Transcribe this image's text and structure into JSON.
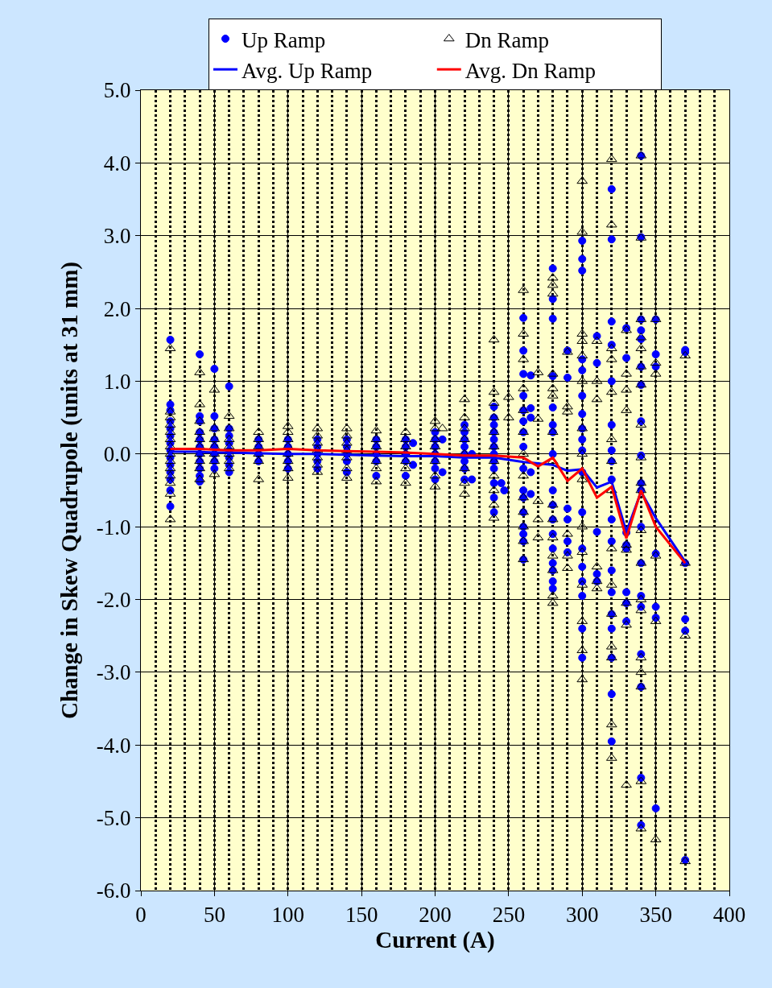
{
  "chart_data": {
    "type": "scatter",
    "xlabel": "Current (A)",
    "ylabel": "Change in Skew Quadrupole (units at 31 mm)",
    "xlim": [
      0,
      400
    ],
    "xticks": [
      0,
      50,
      100,
      150,
      200,
      250,
      300,
      350,
      400
    ],
    "ylim": [
      -6,
      5
    ],
    "yticks": [
      {
        "value": -6,
        "label": "-6.0"
      },
      {
        "value": -5,
        "label": "-5.0"
      },
      {
        "value": -4,
        "label": "-4.0"
      },
      {
        "value": -3,
        "label": "-3.0"
      },
      {
        "value": -2,
        "label": "-2.0"
      },
      {
        "value": -1,
        "label": "-1.0"
      },
      {
        "value": 0,
        "label": "0.0"
      },
      {
        "value": 1,
        "label": "1.0"
      },
      {
        "value": 2,
        "label": "2.0"
      },
      {
        "value": 3,
        "label": "3.0"
      },
      {
        "value": 4,
        "label": "4.0"
      },
      {
        "value": 5,
        "label": "5.0"
      }
    ],
    "grid": true,
    "legend": "top",
    "series": [
      {
        "name": "Up Ramp",
        "marker": "circle",
        "color": "#0000ff",
        "x": [
          20,
          20,
          20,
          20,
          20,
          20,
          20,
          20,
          20,
          20,
          20,
          20,
          20,
          20,
          40,
          40,
          40,
          40,
          40,
          40,
          40,
          40,
          40,
          40,
          40,
          50,
          50,
          50,
          50,
          50,
          50,
          50,
          50,
          60,
          60,
          60,
          60,
          60,
          60,
          60,
          60,
          80,
          80,
          80,
          80,
          100,
          100,
          100,
          100,
          100,
          120,
          120,
          120,
          120,
          120,
          140,
          140,
          140,
          140,
          140,
          160,
          160,
          160,
          160,
          160,
          180,
          180,
          180,
          180,
          180,
          185,
          185,
          200,
          200,
          200,
          200,
          200,
          200,
          200,
          205,
          205,
          220,
          220,
          220,
          220,
          220,
          220,
          220,
          220,
          225,
          225,
          240,
          240,
          240,
          240,
          240,
          240,
          240,
          240,
          240,
          240,
          240,
          240,
          245,
          247,
          260,
          260,
          260,
          260,
          260,
          260,
          260,
          260,
          260,
          260,
          260,
          260,
          260,
          260,
          260,
          260,
          265,
          265,
          265,
          265,
          265,
          280,
          280,
          280,
          280,
          280,
          280,
          280,
          280,
          280,
          280,
          280,
          280,
          280,
          280,
          280,
          280,
          280,
          290,
          290,
          290,
          290,
          290,
          290,
          300,
          300,
          300,
          300,
          300,
          300,
          300,
          300,
          300,
          300,
          300,
          300,
          300,
          300,
          300,
          300,
          300,
          300,
          310,
          310,
          310,
          310,
          310,
          320,
          320,
          320,
          320,
          320,
          320,
          320,
          320,
          320,
          320,
          320,
          320,
          320,
          320,
          320,
          320,
          320,
          320,
          330,
          330,
          330,
          330,
          330,
          330,
          330,
          330,
          340,
          340,
          340,
          340,
          340,
          340,
          340,
          340,
          340,
          340,
          340,
          340,
          340,
          340,
          340,
          340,
          340,
          340,
          340,
          350,
          350,
          350,
          350,
          350,
          350,
          350,
          370,
          370,
          370,
          370,
          370,
          370
        ],
        "values": [
          1.57,
          0.68,
          0.6,
          0.45,
          0.35,
          0.25,
          0.15,
          0.05,
          -0.05,
          -0.15,
          -0.25,
          -0.35,
          -0.5,
          -0.72,
          1.37,
          0.52,
          0.45,
          0.3,
          0.2,
          0.1,
          0.0,
          -0.1,
          -0.2,
          -0.3,
          -0.38,
          1.17,
          0.52,
          0.35,
          0.2,
          0.1,
          0.0,
          -0.1,
          -0.2,
          0.93,
          0.35,
          0.25,
          0.15,
          0.05,
          -0.05,
          -0.15,
          -0.25,
          0.2,
          0.1,
          0.0,
          -0.1,
          0.2,
          0.1,
          0.0,
          -0.1,
          -0.2,
          0.2,
          0.1,
          0.0,
          -0.1,
          -0.2,
          0.2,
          0.1,
          0.0,
          -0.1,
          -0.25,
          0.2,
          0.1,
          0.0,
          -0.1,
          -0.3,
          0.2,
          0.1,
          0.0,
          -0.1,
          -0.3,
          0.15,
          -0.15,
          0.3,
          0.2,
          0.1,
          0.0,
          -0.1,
          -0.2,
          -0.35,
          0.2,
          -0.25,
          0.4,
          0.3,
          0.2,
          0.1,
          0.0,
          -0.1,
          -0.2,
          -0.35,
          0.0,
          -0.35,
          0.65,
          0.5,
          0.4,
          0.3,
          0.2,
          0.1,
          0.0,
          -0.1,
          -0.2,
          -0.4,
          -0.6,
          -0.8,
          -0.4,
          -0.5,
          1.87,
          1.42,
          1.1,
          0.8,
          0.6,
          0.45,
          0.3,
          0.1,
          -0.2,
          -0.5,
          -0.6,
          -0.8,
          -1.0,
          -1.1,
          -1.2,
          -1.45,
          1.08,
          0.63,
          0.5,
          -0.25,
          -0.55,
          2.55,
          2.13,
          1.86,
          1.07,
          0.64,
          0.4,
          0.3,
          0.0,
          -0.5,
          -0.7,
          -0.9,
          -1.1,
          -1.3,
          -1.5,
          -1.6,
          -1.75,
          -1.85,
          1.42,
          1.05,
          -0.75,
          -0.9,
          -1.2,
          -1.35,
          2.93,
          2.68,
          2.52,
          1.3,
          1.15,
          0.8,
          0.55,
          0.35,
          0.2,
          0.05,
          -0.25,
          -0.8,
          -1.3,
          -1.55,
          -1.75,
          -1.95,
          -2.4,
          -2.8,
          1.62,
          1.25,
          -1.07,
          -1.65,
          -1.75,
          3.64,
          2.95,
          1.82,
          1.5,
          1.0,
          0.4,
          0.05,
          -0.1,
          -0.35,
          -0.9,
          -1.2,
          -1.6,
          -1.9,
          -2.2,
          -2.4,
          -2.8,
          -3.3,
          -3.95,
          1.73,
          1.32,
          -1.08,
          -1.25,
          -1.3,
          -1.9,
          -2.05,
          -2.3,
          4.1,
          2.98,
          1.85,
          1.7,
          1.58,
          1.2,
          0.95,
          0.45,
          -0.02,
          -0.4,
          -0.5,
          -1.0,
          -1.5,
          -1.95,
          -2.1,
          -2.75,
          -3.2,
          -4.45,
          -5.1,
          1.85,
          1.37,
          1.2,
          -1.37,
          -2.1,
          -2.25,
          -4.87,
          1.43,
          1.4,
          -1.5,
          -2.27,
          -2.43,
          -5.58
        ]
      },
      {
        "name": "Dn Ramp",
        "marker": "triangle",
        "color": "#000000",
        "x": [
          20,
          20,
          20,
          20,
          20,
          20,
          20,
          20,
          20,
          20,
          20,
          20,
          20,
          20,
          40,
          40,
          40,
          40,
          40,
          40,
          40,
          40,
          40,
          40,
          50,
          50,
          50,
          50,
          50,
          50,
          50,
          60,
          60,
          60,
          60,
          60,
          60,
          60,
          80,
          80,
          80,
          80,
          80,
          80,
          100,
          100,
          100,
          100,
          100,
          100,
          100,
          100,
          120,
          120,
          120,
          120,
          120,
          120,
          120,
          140,
          140,
          140,
          140,
          140,
          140,
          140,
          160,
          160,
          160,
          160,
          160,
          160,
          160,
          180,
          180,
          180,
          180,
          180,
          180,
          180,
          200,
          200,
          200,
          200,
          200,
          200,
          200,
          200,
          205,
          220,
          220,
          220,
          220,
          220,
          220,
          220,
          220,
          240,
          240,
          240,
          240,
          240,
          240,
          240,
          240,
          240,
          240,
          240,
          250,
          250,
          260,
          260,
          260,
          260,
          260,
          260,
          260,
          260,
          260,
          260,
          260,
          260,
          260,
          270,
          270,
          270,
          270,
          270,
          280,
          280,
          280,
          280,
          280,
          280,
          280,
          280,
          280,
          280,
          280,
          280,
          280,
          280,
          280,
          290,
          290,
          290,
          290,
          290,
          290,
          300,
          300,
          300,
          300,
          300,
          300,
          300,
          300,
          300,
          300,
          300,
          300,
          300,
          300,
          300,
          310,
          310,
          310,
          310,
          310,
          310,
          320,
          320,
          320,
          320,
          320,
          320,
          320,
          320,
          320,
          320,
          320,
          320,
          320,
          320,
          320,
          330,
          330,
          330,
          330,
          330,
          330,
          330,
          330,
          330,
          340,
          340,
          340,
          340,
          340,
          340,
          340,
          340,
          340,
          340,
          340,
          340,
          340,
          340,
          340,
          340,
          340,
          340,
          340,
          340,
          350,
          350,
          350,
          350,
          350,
          350,
          370,
          370,
          370,
          370
        ],
        "values": [
          1.45,
          0.58,
          0.5,
          0.4,
          0.3,
          0.2,
          0.1,
          0.0,
          -0.1,
          -0.2,
          -0.3,
          -0.4,
          -0.55,
          -0.9,
          1.12,
          0.68,
          0.45,
          0.3,
          0.2,
          0.1,
          0.0,
          -0.1,
          -0.2,
          -0.35,
          0.88,
          0.35,
          0.2,
          0.1,
          0.0,
          -0.1,
          -0.28,
          0.52,
          0.35,
          0.2,
          0.1,
          0.0,
          -0.1,
          -0.2,
          0.3,
          0.2,
          0.1,
          0.0,
          -0.1,
          -0.35,
          0.38,
          0.3,
          0.2,
          0.1,
          0.0,
          -0.1,
          -0.2,
          -0.33,
          0.35,
          0.25,
          0.15,
          0.05,
          -0.05,
          -0.15,
          -0.25,
          0.35,
          0.25,
          0.15,
          0.05,
          -0.05,
          -0.2,
          -0.33,
          0.32,
          0.2,
          0.1,
          0.0,
          -0.1,
          -0.2,
          -0.38,
          0.3,
          0.2,
          0.1,
          0.0,
          -0.1,
          -0.2,
          -0.4,
          0.45,
          0.35,
          0.2,
          0.1,
          0.0,
          -0.1,
          -0.3,
          -0.45,
          0.35,
          0.75,
          0.5,
          0.35,
          0.2,
          0.0,
          -0.2,
          -0.4,
          -0.55,
          1.57,
          0.85,
          0.7,
          0.5,
          0.3,
          0.1,
          -0.1,
          -0.3,
          -0.5,
          -0.7,
          -0.88,
          0.78,
          0.5,
          2.25,
          1.65,
          1.3,
          0.9,
          0.6,
          0.3,
          0.0,
          -0.3,
          -0.6,
          -0.8,
          -1.0,
          -1.2,
          -1.45,
          1.12,
          0.48,
          -0.65,
          -0.9,
          -1.15,
          2.42,
          2.32,
          2.2,
          1.1,
          0.9,
          0.8,
          0.3,
          -0.1,
          -0.7,
          -0.9,
          -1.15,
          -1.4,
          -1.6,
          -1.95,
          -2.05,
          1.4,
          0.65,
          0.58,
          -1.1,
          -1.4,
          -1.57,
          3.75,
          3.05,
          1.65,
          1.55,
          1.35,
          1.0,
          0.35,
          0.0,
          -0.35,
          -1.0,
          -1.35,
          -1.8,
          -2.3,
          -2.7,
          -3.1,
          1.55,
          1.0,
          0.75,
          -1.55,
          -1.75,
          -1.85,
          4.05,
          3.15,
          1.45,
          1.3,
          0.85,
          0.2,
          -0.1,
          -0.5,
          -1.3,
          -1.8,
          -2.2,
          -2.65,
          -2.8,
          -3.72,
          -4.18,
          1.7,
          1.1,
          0.88,
          0.6,
          -1.25,
          -1.32,
          -2.05,
          -2.35,
          -4.55,
          4.1,
          2.97,
          1.85,
          1.6,
          1.45,
          1.2,
          0.95,
          0.4,
          -0.05,
          -0.4,
          -0.5,
          -1.05,
          -1.5,
          -2.0,
          -2.15,
          -2.8,
          -3.0,
          -3.2,
          -4.5,
          -5.15,
          1.85,
          1.25,
          1.1,
          -1.4,
          -2.3,
          -5.3,
          1.35,
          -1.5,
          -2.5,
          -5.6
        ]
      },
      {
        "name": "Avg. Up Ramp",
        "type": "line",
        "marker": "none",
        "line_style": "solid",
        "color": "#0000ff",
        "x": [
          20,
          40,
          50,
          60,
          80,
          100,
          120,
          140,
          160,
          180,
          200,
          220,
          240,
          260,
          270,
          280,
          290,
          300,
          310,
          320,
          330,
          340,
          350,
          370
        ],
        "values": [
          0.03,
          0.03,
          0.02,
          0.02,
          0.01,
          0.0,
          0.0,
          -0.01,
          -0.02,
          -0.03,
          -0.03,
          -0.05,
          -0.05,
          -0.11,
          -0.13,
          -0.15,
          -0.23,
          -0.21,
          -0.46,
          -0.38,
          -1.07,
          -0.52,
          -0.88,
          -1.48
        ]
      },
      {
        "name": "Avg. Dn Ramp",
        "type": "line",
        "marker": "none",
        "line_style": "solid",
        "color": "#ff0000",
        "x": [
          20,
          40,
          50,
          60,
          80,
          100,
          120,
          140,
          160,
          180,
          200,
          220,
          240,
          260,
          270,
          280,
          290,
          300,
          310,
          320,
          330,
          340,
          350,
          370
        ],
        "values": [
          0.07,
          0.07,
          0.06,
          0.05,
          0.05,
          0.07,
          0.05,
          0.04,
          0.03,
          0.02,
          0.0,
          -0.02,
          -0.02,
          -0.05,
          -0.17,
          -0.05,
          -0.37,
          -0.2,
          -0.6,
          -0.45,
          -1.16,
          -0.5,
          -1.0,
          -1.5
        ]
      }
    ]
  }
}
